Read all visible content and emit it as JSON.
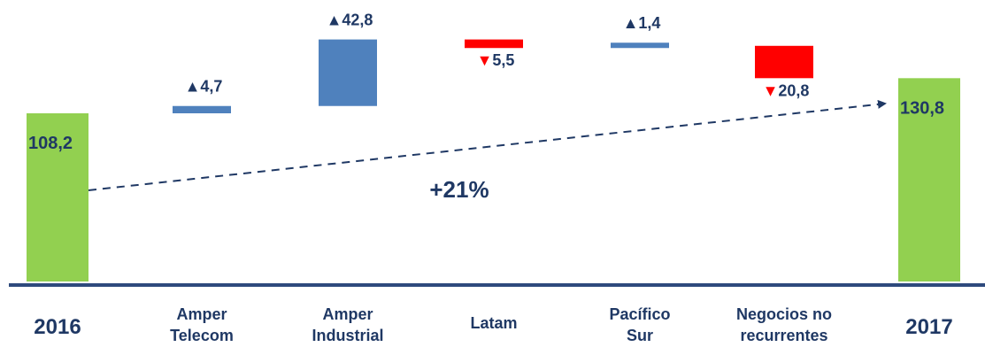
{
  "chart_data": {
    "type": "waterfall",
    "categories": [
      "2016",
      "Amper Telecom",
      "Amper Industrial",
      "Latam",
      "Pacífico Sur",
      "Negocios no recurrentes",
      "2017"
    ],
    "category_lines": [
      [
        "2016"
      ],
      [
        "Amper",
        "Telecom"
      ],
      [
        "Amper",
        "Industrial"
      ],
      [
        "Latam"
      ],
      [
        "Pacífico",
        "Sur"
      ],
      [
        "Negocios no",
        "recurrentes"
      ],
      [
        "2017"
      ]
    ],
    "values": [
      108.2,
      4.7,
      42.8,
      -5.5,
      1.4,
      -20.8,
      130.8
    ],
    "measure": [
      "total",
      "relative",
      "relative",
      "relative",
      "relative",
      "relative",
      "total"
    ],
    "value_labels": [
      "108,2",
      "4,7",
      "42,8",
      "5,5",
      "1,4",
      "20,8",
      "130,8"
    ],
    "annotation": "+21%",
    "colors": {
      "total": "#92d050",
      "increase": "#4f81bd",
      "decrease": "#ff0000",
      "text": "#1f3864",
      "axis": "#2e4a7d"
    }
  }
}
